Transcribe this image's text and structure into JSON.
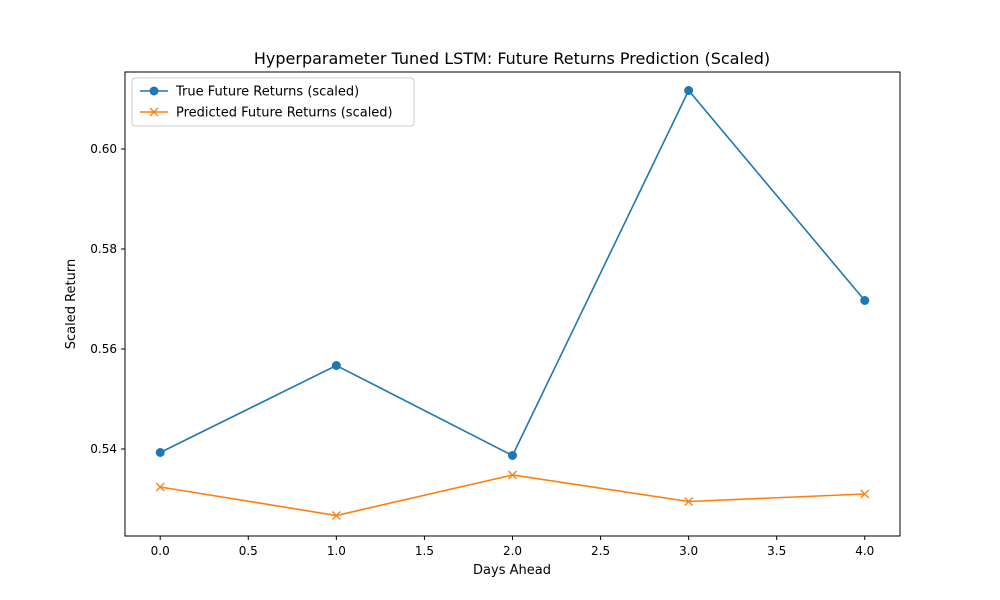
{
  "chart_data": {
    "type": "line",
    "title": "Hyperparameter Tuned LSTM: Future Returns Prediction (Scaled)",
    "xlabel": "Days Ahead",
    "ylabel": "Scaled Return",
    "x": [
      0,
      1,
      2,
      3,
      4
    ],
    "xlim": [
      -0.2,
      4.2
    ],
    "ylim": [
      0.5226,
      0.6154
    ],
    "xticks": [
      0.0,
      0.5,
      1.0,
      1.5,
      2.0,
      2.5,
      3.0,
      3.5,
      4.0
    ],
    "xtick_labels": [
      "0.0",
      "0.5",
      "1.0",
      "1.5",
      "2.0",
      "2.5",
      "3.0",
      "3.5",
      "4.0"
    ],
    "yticks": [
      0.54,
      0.56,
      0.58,
      0.6
    ],
    "ytick_labels": [
      "0.54",
      "0.56",
      "0.58",
      "0.60"
    ],
    "grid": false,
    "legend_position": "upper-left",
    "series": [
      {
        "name": "True Future Returns (scaled)",
        "values": [
          0.5393,
          0.5567,
          0.5387,
          0.6117,
          0.5697
        ],
        "color": "#1f77b4",
        "marker": "circle"
      },
      {
        "name": "Predicted Future Returns (scaled)",
        "values": [
          0.5324,
          0.5267,
          0.5348,
          0.5295,
          0.531
        ],
        "color": "#ff7f0e",
        "marker": "x"
      }
    ]
  }
}
